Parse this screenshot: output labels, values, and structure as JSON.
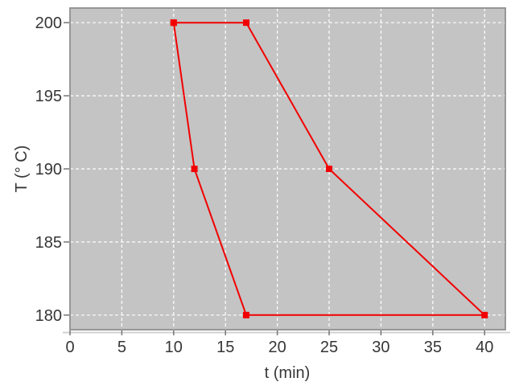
{
  "chart_data": {
    "type": "line",
    "title": "",
    "xlabel": "t (min)",
    "ylabel": "T (° C)",
    "xlim": [
      0,
      42
    ],
    "ylim": [
      179,
      201
    ],
    "xticks": [
      0,
      5,
      10,
      15,
      20,
      25,
      30,
      35,
      40
    ],
    "yticks": [
      180,
      185,
      190,
      195,
      200
    ],
    "grid": {
      "visible": true,
      "color": "#ffffff",
      "style": "dashed"
    },
    "legend": {
      "visible": false
    },
    "plot_background": "#c4c4c4",
    "plot_border_color": "#8f8f8f",
    "axis_line_color": "#d2d2d2",
    "tick_color": "#757575",
    "tick_label_color": "#363636",
    "axis_label_color": "#363636",
    "series": [
      {
        "name": "temperature-profile",
        "color": "#f20000",
        "marker": "square",
        "marker_size": 8,
        "line_width": 2,
        "points": [
          {
            "x": 10,
            "y": 200
          },
          {
            "x": 17,
            "y": 200
          },
          {
            "x": 25,
            "y": 190
          },
          {
            "x": 40,
            "y": 180
          },
          {
            "x": 17,
            "y": 180
          },
          {
            "x": 12,
            "y": 190
          },
          {
            "x": 10,
            "y": 200
          }
        ]
      }
    ]
  }
}
